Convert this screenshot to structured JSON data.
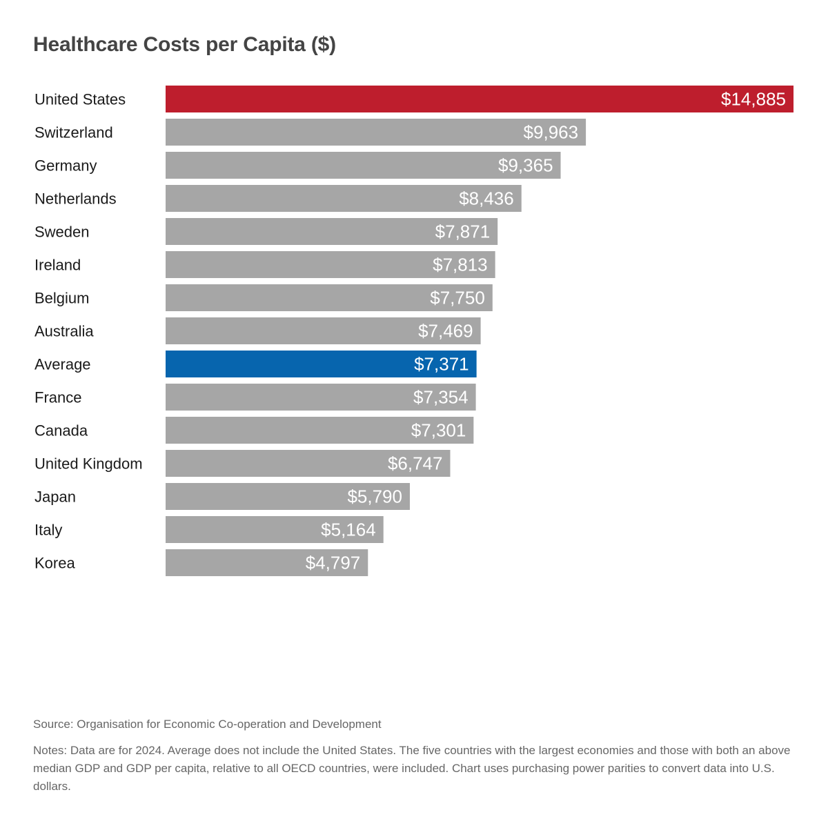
{
  "chart_data": {
    "type": "bar",
    "orientation": "horizontal",
    "title": "Healthcare Costs per Capita ($)",
    "categories": [
      "United States",
      "Switzerland",
      "Germany",
      "Netherlands",
      "Sweden",
      "Ireland",
      "Belgium",
      "Australia",
      "Average",
      "France",
      "Canada",
      "United Kingdom",
      "Japan",
      "Italy",
      "Korea"
    ],
    "values": [
      14885,
      9963,
      9365,
      8436,
      7871,
      7813,
      7750,
      7469,
      7371,
      7354,
      7301,
      6747,
      5790,
      5164,
      4797
    ],
    "value_labels": [
      "$14,885",
      "$9,963",
      "$9,365",
      "$8,436",
      "$7,871",
      "$7,813",
      "$7,750",
      "$7,469",
      "$7,371",
      "$7,354",
      "$7,301",
      "$6,747",
      "$5,790",
      "$5,164",
      "$4,797"
    ],
    "xlim": [
      0,
      14885
    ],
    "grid": false,
    "colors": {
      "default": "#a6a6a6",
      "highlight_us": "#be1e2d",
      "highlight_average": "#0765ae"
    },
    "highlights": {
      "United States": "highlight_us",
      "Average": "highlight_average"
    }
  },
  "footer": {
    "source": "Source: Organisation for Economic Co-operation and Development",
    "notes": "Notes: Data are for 2024. Average does not include the United States. The five countries with the largest economies and those with both an above median GDP and GDP per capita, relative to all OECD countries, were included. Chart uses purchasing power parities to convert data into U.S. dollars."
  }
}
